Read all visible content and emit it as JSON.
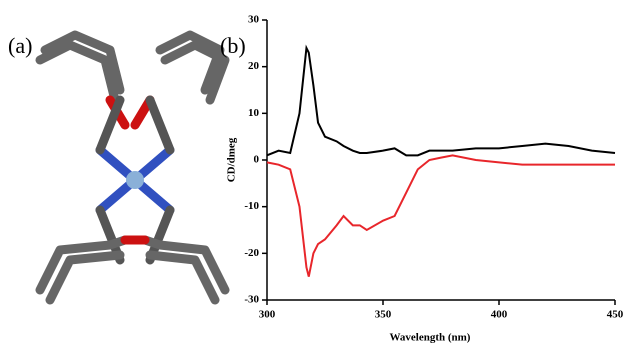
{
  "panel_labels": [
    "(a)",
    "(b)"
  ],
  "chart_data": {
    "type": "line",
    "x_label": "Wavelength (nm)",
    "y_label": "CD/dmeg",
    "x": [
      300,
      305,
      310,
      314,
      317,
      318,
      320,
      322,
      325,
      330,
      333,
      337,
      340,
      343,
      350,
      355,
      360,
      365,
      370,
      375,
      380,
      390,
      400,
      410,
      420,
      430,
      440,
      450
    ],
    "series": [
      {
        "color": "#000000",
        "values": [
          1,
          2,
          1.5,
          10,
          24,
          23,
          16,
          8,
          5,
          4,
          3,
          2,
          1.5,
          1.5,
          2,
          2.5,
          1,
          1,
          2,
          2,
          2,
          2.5,
          2.5,
          3,
          3.5,
          3,
          2,
          1.5
        ]
      },
      {
        "color": "#e8262b",
        "values": [
          -0.5,
          -1,
          -2,
          -10,
          -23,
          -25,
          -20,
          -18,
          -17,
          -14,
          -12,
          -14,
          -14,
          -15,
          -13,
          -12,
          -7,
          -2,
          0,
          0.5,
          1,
          0,
          -0.5,
          -1,
          -1,
          -1,
          -1,
          -1
        ]
      }
    ],
    "xlim": [
      300,
      450
    ],
    "xticks": [
      300,
      350,
      400,
      450
    ],
    "ylim": [
      -30,
      30
    ],
    "yticks": [
      -30,
      -20,
      -10,
      0,
      10,
      20,
      30
    ]
  }
}
